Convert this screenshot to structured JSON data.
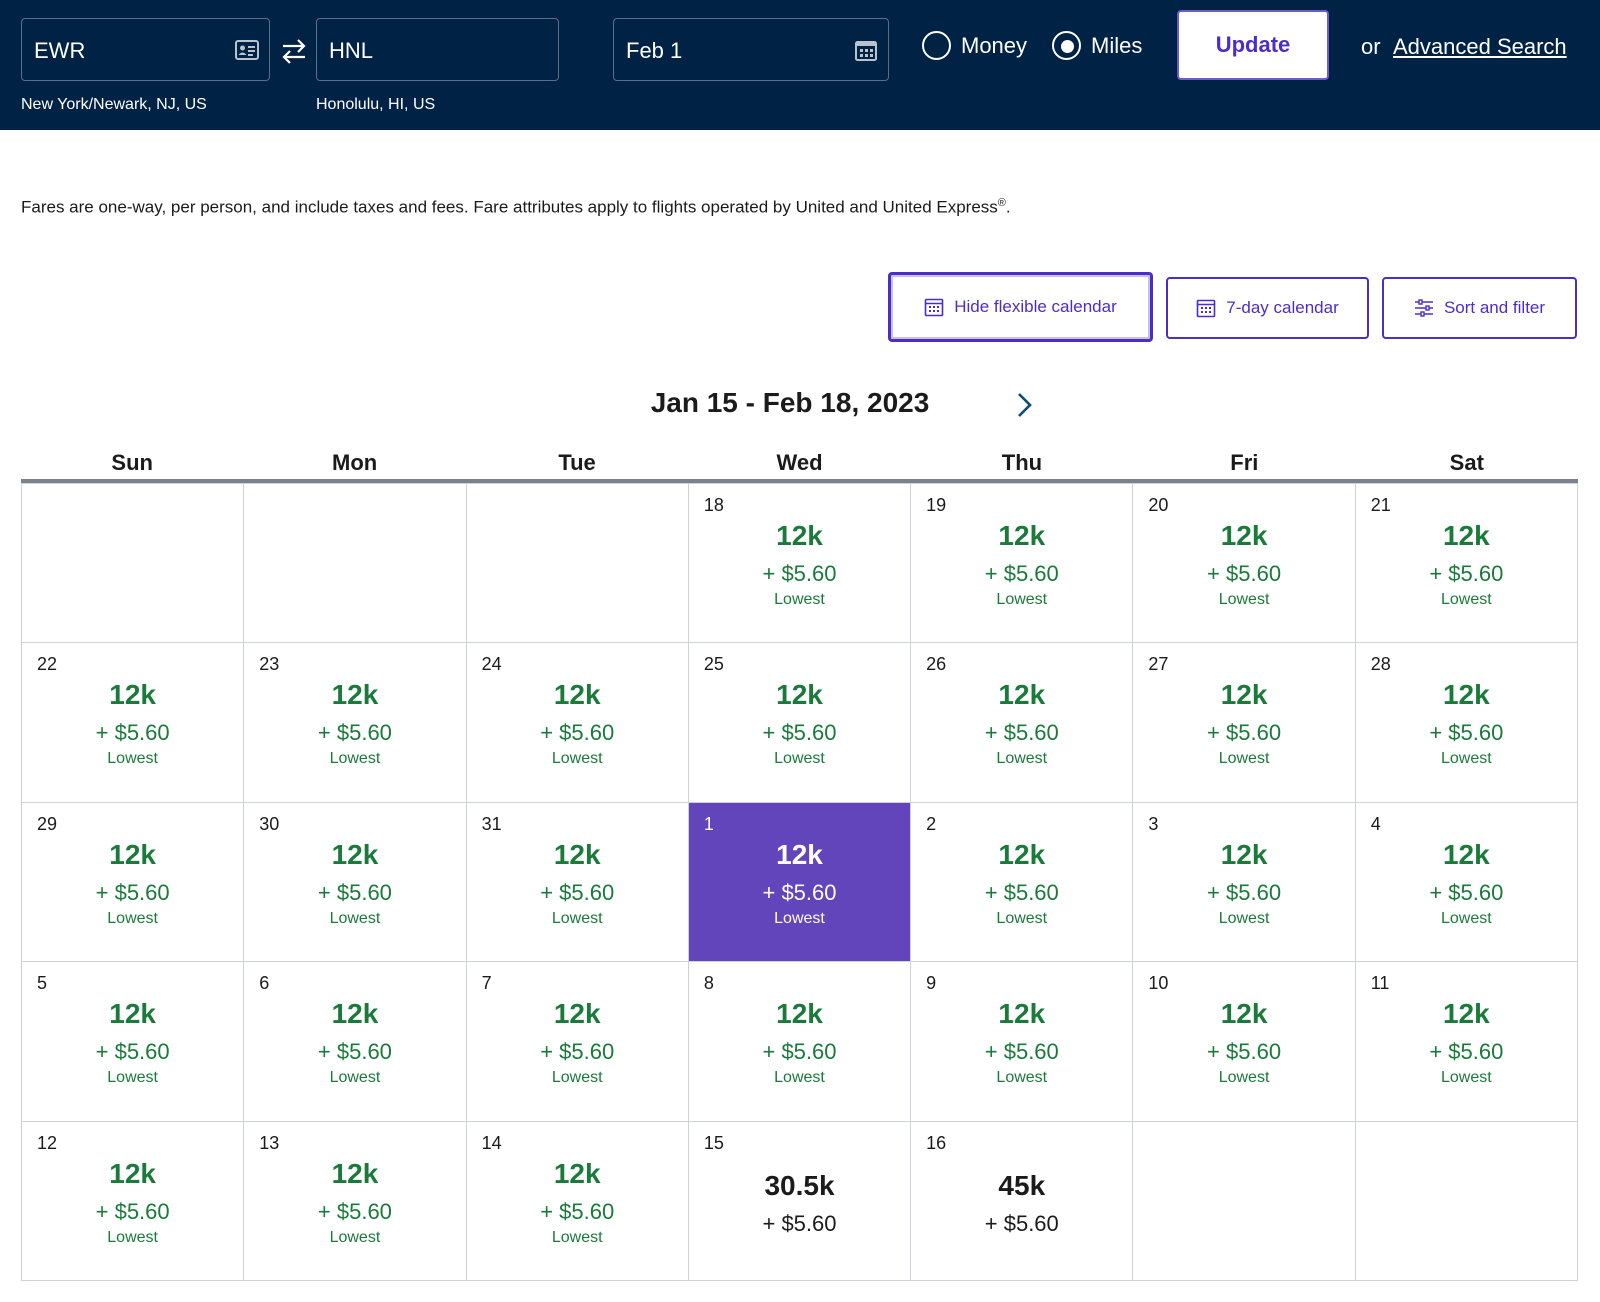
{
  "search": {
    "origin_code": "EWR",
    "origin_city": "New York/Newark, NJ, US",
    "dest_code": "HNL",
    "dest_city": "Honolulu, HI, US",
    "date": "Feb 1",
    "fare_type_options": [
      "Money",
      "Miles"
    ],
    "fare_type_selected": "Miles",
    "update_label": "Update",
    "or_label": "or",
    "advanced_label": "Advanced Search"
  },
  "disclaimer": {
    "text": "Fares are one-way, per person, and include taxes and fees. Fare attributes apply to flights operated by United and United Express",
    "mark": "®",
    "end": "."
  },
  "toolbar": {
    "hide_flexible_label": "Hide flexible calendar",
    "seven_day_label": "7-day calendar",
    "sort_filter_label": "Sort and filter"
  },
  "calendar": {
    "range_title": "Jan 15 - Feb 18, 2023",
    "weekdays": [
      "Sun",
      "Mon",
      "Tue",
      "Wed",
      "Thu",
      "Fri",
      "Sat"
    ],
    "days": [
      {
        "day": "",
        "empty": true
      },
      {
        "day": "",
        "empty": true
      },
      {
        "day": "",
        "empty": true
      },
      {
        "day": "18",
        "miles": "12k",
        "tax": "+ $5.60",
        "tag": "Lowest"
      },
      {
        "day": "19",
        "miles": "12k",
        "tax": "+ $5.60",
        "tag": "Lowest"
      },
      {
        "day": "20",
        "miles": "12k",
        "tax": "+ $5.60",
        "tag": "Lowest"
      },
      {
        "day": "21",
        "miles": "12k",
        "tax": "+ $5.60",
        "tag": "Lowest"
      },
      {
        "day": "22",
        "miles": "12k",
        "tax": "+ $5.60",
        "tag": "Lowest"
      },
      {
        "day": "23",
        "miles": "12k",
        "tax": "+ $5.60",
        "tag": "Lowest"
      },
      {
        "day": "24",
        "miles": "12k",
        "tax": "+ $5.60",
        "tag": "Lowest"
      },
      {
        "day": "25",
        "miles": "12k",
        "tax": "+ $5.60",
        "tag": "Lowest"
      },
      {
        "day": "26",
        "miles": "12k",
        "tax": "+ $5.60",
        "tag": "Lowest"
      },
      {
        "day": "27",
        "miles": "12k",
        "tax": "+ $5.60",
        "tag": "Lowest"
      },
      {
        "day": "28",
        "miles": "12k",
        "tax": "+ $5.60",
        "tag": "Lowest"
      },
      {
        "day": "29",
        "miles": "12k",
        "tax": "+ $5.60",
        "tag": "Lowest"
      },
      {
        "day": "30",
        "miles": "12k",
        "tax": "+ $5.60",
        "tag": "Lowest"
      },
      {
        "day": "31",
        "miles": "12k",
        "tax": "+ $5.60",
        "tag": "Lowest"
      },
      {
        "day": "1",
        "miles": "12k",
        "tax": "+ $5.60",
        "tag": "Lowest",
        "selected": true
      },
      {
        "day": "2",
        "miles": "12k",
        "tax": "+ $5.60",
        "tag": "Lowest"
      },
      {
        "day": "3",
        "miles": "12k",
        "tax": "+ $5.60",
        "tag": "Lowest"
      },
      {
        "day": "4",
        "miles": "12k",
        "tax": "+ $5.60",
        "tag": "Lowest"
      },
      {
        "day": "5",
        "miles": "12k",
        "tax": "+ $5.60",
        "tag": "Lowest"
      },
      {
        "day": "6",
        "miles": "12k",
        "tax": "+ $5.60",
        "tag": "Lowest"
      },
      {
        "day": "7",
        "miles": "12k",
        "tax": "+ $5.60",
        "tag": "Lowest"
      },
      {
        "day": "8",
        "miles": "12k",
        "tax": "+ $5.60",
        "tag": "Lowest"
      },
      {
        "day": "9",
        "miles": "12k",
        "tax": "+ $5.60",
        "tag": "Lowest"
      },
      {
        "day": "10",
        "miles": "12k",
        "tax": "+ $5.60",
        "tag": "Lowest"
      },
      {
        "day": "11",
        "miles": "12k",
        "tax": "+ $5.60",
        "tag": "Lowest"
      },
      {
        "day": "12",
        "miles": "12k",
        "tax": "+ $5.60",
        "tag": "Lowest"
      },
      {
        "day": "13",
        "miles": "12k",
        "tax": "+ $5.60",
        "tag": "Lowest"
      },
      {
        "day": "14",
        "miles": "12k",
        "tax": "+ $5.60",
        "tag": "Lowest"
      },
      {
        "day": "15",
        "miles": "30.5k",
        "tax": "+ $5.60",
        "tag": ""
      },
      {
        "day": "16",
        "miles": "45k",
        "tax": "+ $5.60",
        "tag": ""
      },
      {
        "day": "",
        "empty": true
      },
      {
        "day": "",
        "empty": true
      }
    ]
  },
  "icons": {
    "origin_field": "id-card-icon",
    "swap": "swap-arrows-icon",
    "date_field": "calendar-icon",
    "next": "chevron-right-icon",
    "toolbar_calendar": "calendar-icon",
    "sort": "sliders-icon"
  },
  "colors": {
    "header_bg": "#002244",
    "accent": "#4b2ec9",
    "selected_day": "#6244bb",
    "price_green": "#1a7a3a"
  }
}
